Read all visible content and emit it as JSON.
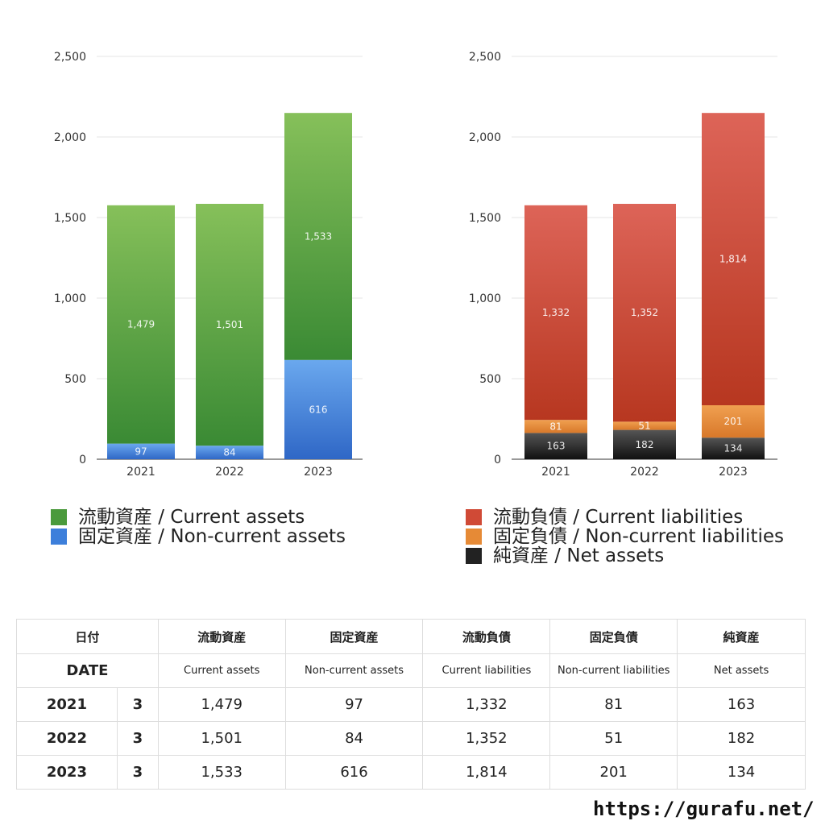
{
  "chart_data": [
    {
      "type": "bar",
      "stacked": true,
      "categories": [
        "2021",
        "2022",
        "2023"
      ],
      "ylim": [
        0,
        2500
      ],
      "yticks": [
        "0",
        "500",
        "1,000",
        "1,500",
        "2,000",
        "2,500"
      ],
      "grid": true,
      "legend_position": "bottom",
      "series": [
        {
          "name": "固定資産 / Non-current assets",
          "values": [
            97,
            84,
            616
          ],
          "labels": [
            "97",
            "84",
            "616"
          ],
          "color_top": "#6aa8ee",
          "color_bottom": "#2f67c6"
        },
        {
          "name": "流動資産 / Current assets",
          "values": [
            1479,
            1501,
            1533
          ],
          "labels": [
            "1,479",
            "1,501",
            "1,533"
          ],
          "color_top": "#86c05a",
          "color_bottom": "#3a8a34"
        }
      ],
      "legend": [
        {
          "label": "流動資産 / Current assets",
          "color": "#4a9a3c"
        },
        {
          "label": "固定資産 / Non-current assets",
          "color": "#3d7fdb"
        }
      ]
    },
    {
      "type": "bar",
      "stacked": true,
      "categories": [
        "2021",
        "2022",
        "2023"
      ],
      "ylim": [
        0,
        2500
      ],
      "yticks": [
        "0",
        "500",
        "1,000",
        "1,500",
        "2,000",
        "2,500"
      ],
      "grid": true,
      "legend_position": "bottom",
      "series": [
        {
          "name": "純資産 / Net assets",
          "values": [
            163,
            182,
            134
          ],
          "labels": [
            "163",
            "182",
            "134"
          ],
          "color_top": "#555555",
          "color_bottom": "#111111"
        },
        {
          "name": "固定負債 / Non-current liabilities",
          "values": [
            81,
            51,
            201
          ],
          "labels": [
            "81",
            "51",
            "201"
          ],
          "color_top": "#f0a050",
          "color_bottom": "#d8782a"
        },
        {
          "name": "流動負債 / Current liabilities",
          "values": [
            1332,
            1352,
            1814
          ],
          "labels": [
            "1,332",
            "1,352",
            "1,814"
          ],
          "color_top": "#dd6458",
          "color_bottom": "#b73720"
        }
      ],
      "legend": [
        {
          "label": "流動負債 / Current liabilities",
          "color": "#d04a36"
        },
        {
          "label": "固定負債 / Non-current liabilities",
          "color": "#e68a36"
        },
        {
          "label": "純資産 / Net assets",
          "color": "#222222"
        }
      ]
    }
  ],
  "table": {
    "header_jp": [
      "日付",
      "流動資産",
      "固定資産",
      "流動負債",
      "固定負債",
      "純資産"
    ],
    "header_en": [
      "DATE",
      "Current assets",
      "Non-current assets",
      "Current liabilities",
      "Non-current liabilities",
      "Net assets"
    ],
    "rows": [
      {
        "year": "2021",
        "month": "3",
        "cells": [
          "1,479",
          "97",
          "1,332",
          "81",
          "163"
        ]
      },
      {
        "year": "2022",
        "month": "3",
        "cells": [
          "1,501",
          "84",
          "1,352",
          "51",
          "182"
        ]
      },
      {
        "year": "2023",
        "month": "3",
        "cells": [
          "1,533",
          "616",
          "1,814",
          "201",
          "134"
        ]
      }
    ]
  },
  "footer": {
    "url": "https://gurafu.net/"
  }
}
